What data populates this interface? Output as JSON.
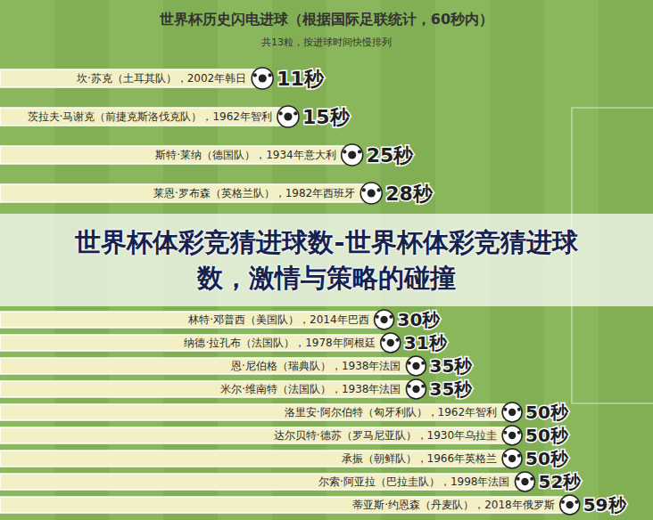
{
  "chart_data": {
    "type": "bar",
    "orientation": "horizontal",
    "title": "世界杯历史闪电进球（根据国际足联统计，60秒内）",
    "subtitle": "共13粒，按进球时间快慢排列",
    "annotations": [
      "世界杯体彩竞猜进球数-世界杯体彩竞猜进球数，激情与策略的碰撞"
    ],
    "categories": [
      "坎·苏克（土耳其队），2002年韩日",
      "茨拉夫·马谢克（前捷克斯洛伐克队），1962年智利",
      "斯特·莱纳（德国队），1934年意大利",
      "莱恩·罗布森（英格兰队），1982年西班牙",
      "林特·邓普西（美国队），2014年巴西",
      "纳德·拉孔布（法国队），1978年阿根廷",
      "恩·尼伯格（瑞典队），1938年法国",
      "米尔·维南特（法国队），1938年法国",
      "洛里安·阿尔伯特（匈牙利队），1962年智利",
      "达尔贝特·德苏（罗马尼亚队），1930年乌拉圭",
      "承振（朝鲜队），1966年英格兰",
      "尔索·阿亚拉（巴拉圭队），1998年法国",
      "蒂亚斯·约恩森（丹麦队），2018年俄罗斯"
    ],
    "values": [
      11,
      15,
      25,
      28,
      30,
      31,
      35,
      35,
      50,
      50,
      50,
      52,
      59
    ],
    "value_labels": [
      "11秒",
      "15秒",
      "25秒",
      "28秒",
      "30秒",
      "31秒",
      "35秒",
      "35秒",
      "50秒",
      "50秒",
      "50秒",
      "52秒",
      "59秒"
    ],
    "color": "#f4f0c6",
    "xlim": [
      -30,
      72
    ],
    "data_labels": true,
    "tick_labels": false,
    "grid": false
  }
}
